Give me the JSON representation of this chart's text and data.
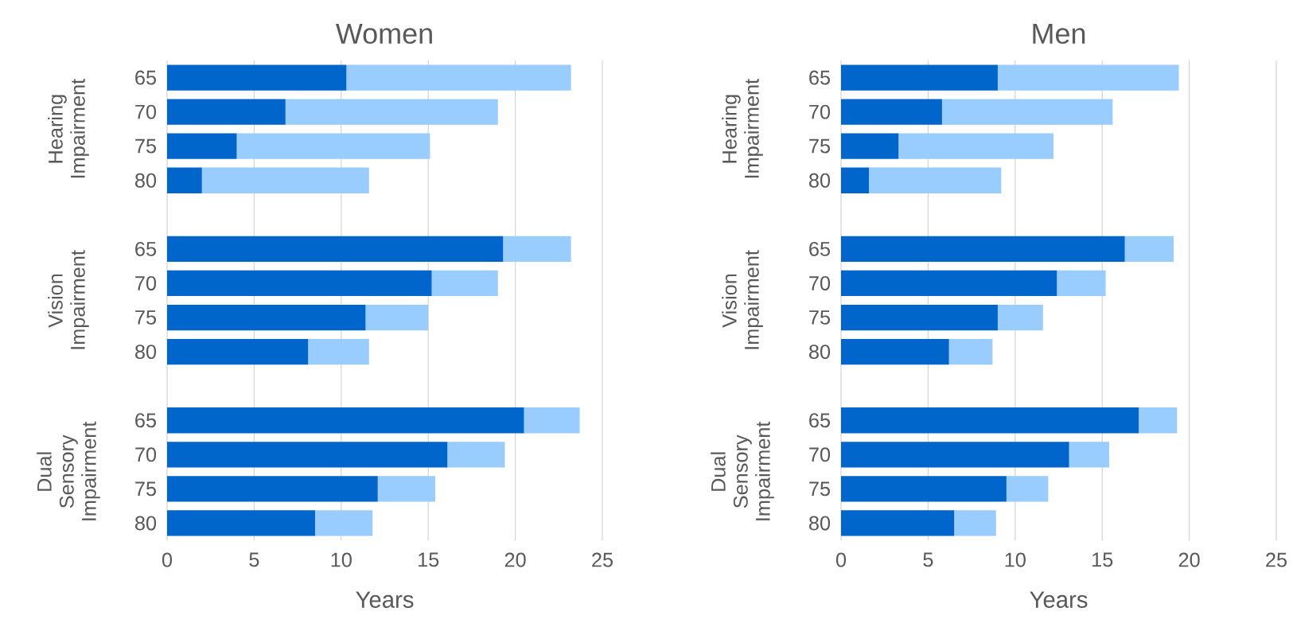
{
  "chart_data": [
    {
      "type": "bar",
      "orientation": "horizontal",
      "stacked": true,
      "title": "Women",
      "xlabel": "Years",
      "categories": [
        "65",
        "70",
        "75",
        "80",
        null,
        "65",
        "70",
        "75",
        "80",
        null,
        "65",
        "70",
        "75",
        "80"
      ],
      "series": [
        {
          "color": "#0066cc",
          "values": [
            10.3,
            6.8,
            4.0,
            2.0,
            null,
            19.3,
            15.2,
            11.4,
            8.1,
            null,
            20.5,
            16.1,
            12.1,
            8.5
          ]
        },
        {
          "color": "#99ccff",
          "values": [
            12.9,
            12.2,
            11.1,
            9.6,
            null,
            3.9,
            3.8,
            3.6,
            3.5,
            null,
            3.2,
            3.3,
            3.3,
            3.3
          ]
        }
      ],
      "xlim": [
        0,
        25
      ],
      "xticks": [
        0,
        5,
        10,
        15,
        20,
        25
      ],
      "grid": "x",
      "annotations": [
        "Hearing Impairment",
        "Vision Impairment",
        "Dual Sensory Impairment"
      ]
    },
    {
      "type": "bar",
      "orientation": "horizontal",
      "stacked": true,
      "title": "Men",
      "xlabel": "Years",
      "categories": [
        "65",
        "70",
        "75",
        "80",
        null,
        "65",
        "70",
        "75",
        "80",
        null,
        "65",
        "70",
        "75",
        "80"
      ],
      "series": [
        {
          "color": "#0066cc",
          "values": [
            9.0,
            5.8,
            3.3,
            1.6,
            null,
            16.3,
            12.4,
            9.0,
            6.2,
            null,
            17.1,
            13.1,
            9.5,
            6.5
          ]
        },
        {
          "color": "#99ccff",
          "values": [
            10.4,
            9.8,
            8.9,
            7.6,
            null,
            2.8,
            2.8,
            2.6,
            2.5,
            null,
            2.2,
            2.3,
            2.4,
            2.4
          ]
        }
      ],
      "xlim": [
        0,
        25
      ],
      "xticks": [
        0,
        5,
        10,
        15,
        20,
        25
      ],
      "grid": "x",
      "annotations": [
        "Hearing Impairment",
        "Vision Impairment",
        "Dual Sensory Impairment"
      ]
    }
  ]
}
